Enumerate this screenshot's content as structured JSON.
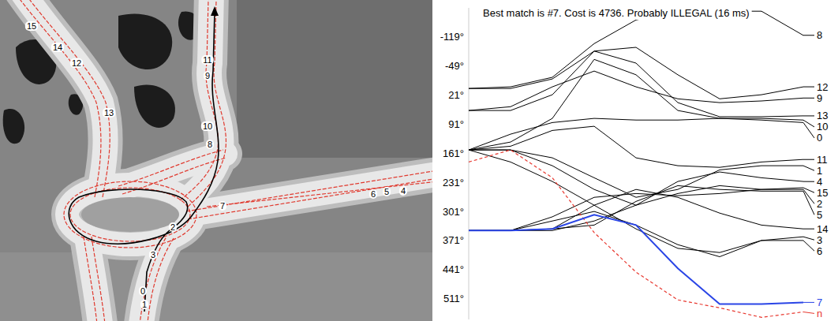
{
  "map": {
    "labels": [
      "0",
      "1",
      "2",
      "3",
      "4",
      "5",
      "6",
      "7",
      "8",
      "9",
      "10",
      "11",
      "12",
      "13",
      "14",
      "15"
    ]
  },
  "chart_data": {
    "type": "line",
    "title": "Best match is #7. Cost is 4736. Probably ILLEGAL (16 ms)",
    "x": [
      0,
      1,
      2,
      3,
      4,
      5,
      6,
      7,
      8
    ],
    "xlim": [
      0,
      8
    ],
    "ylim": [
      560,
      -190
    ],
    "yticks": [
      {
        "value": -119,
        "label": "-119°"
      },
      {
        "value": -49,
        "label": "-49°"
      },
      {
        "value": 21,
        "label": "21°"
      },
      {
        "value": 91,
        "label": "91°"
      },
      {
        "value": 161,
        "label": "161°"
      },
      {
        "value": 231,
        "label": "231°"
      },
      {
        "value": 301,
        "label": "301°"
      },
      {
        "value": 371,
        "label": "371°"
      },
      {
        "value": 441,
        "label": "441°"
      },
      {
        "value": 511,
        "label": "511°"
      }
    ],
    "tick_labels": "y",
    "grid": false,
    "series": [
      {
        "name": "0",
        "color": "#000000",
        "values": [
          152,
          114,
          86,
          76,
          80,
          80,
          76,
          80,
          86
        ]
      },
      {
        "name": "1",
        "color": "#000000",
        "values": [
          152,
          152,
          171,
          219,
          266,
          247,
          200,
          190,
          190
        ]
      },
      {
        "name": "2",
        "color": "#000000",
        "values": [
          346,
          346,
          346,
          323,
          285,
          257,
          238,
          247,
          247
        ]
      },
      {
        "name": "3",
        "color": "#000000",
        "values": [
          152,
          181,
          228,
          285,
          342,
          389,
          399,
          370,
          361
        ]
      },
      {
        "name": "4",
        "color": "#000000",
        "values": [
          152,
          152,
          190,
          247,
          285,
          228,
          205,
          219,
          228
        ]
      },
      {
        "name": "5",
        "color": "#000000",
        "values": [
          346,
          346,
          342,
          333,
          276,
          238,
          247,
          251,
          251
        ]
      },
      {
        "name": "6",
        "color": "#000000",
        "values": [
          346,
          346,
          323,
          300,
          333,
          380,
          409,
          370,
          370
        ]
      },
      {
        "name": "8",
        "color": "#000000",
        "values": [
          4,
          0,
          -23,
          -104,
          -161,
          -182,
          -182,
          -182,
          -124
        ]
      },
      {
        "name": "9",
        "color": "#000000",
        "values": [
          57,
          48,
          0,
          -38,
          0,
          29,
          38,
          34,
          27
        ]
      },
      {
        "name": "10",
        "color": "#000000",
        "values": [
          152,
          133,
          76,
          -66,
          -29,
          57,
          76,
          76,
          80
        ]
      },
      {
        "name": "11",
        "color": "#000000",
        "values": [
          152,
          143,
          105,
          95,
          171,
          190,
          194,
          181,
          175
        ]
      },
      {
        "name": "12",
        "color": "#000000",
        "values": [
          4,
          4,
          -19,
          -86,
          -95,
          -29,
          29,
          19,
          0
        ]
      },
      {
        "name": "13",
        "color": "#000000",
        "values": [
          57,
          57,
          19,
          -86,
          -57,
          38,
          72,
          72,
          70
        ]
      },
      {
        "name": "14",
        "color": "#000000",
        "values": [
          346,
          346,
          342,
          285,
          247,
          266,
          304,
          333,
          342
        ]
      },
      {
        "name": "15",
        "color": "#000000",
        "values": [
          346,
          346,
          313,
          266,
          257,
          262,
          257,
          247,
          243
        ]
      },
      {
        "name": "n",
        "color": "#e8382f",
        "line_style": "dashed",
        "values": [
          181,
          152,
          219,
          351,
          446,
          513,
          532,
          555,
          542
        ]
      },
      {
        "name": "7",
        "color": "#2a45e6",
        "line_style": "solid",
        "values": [
          346,
          346,
          342,
          308,
          333,
          437,
          523,
          523,
          519
        ]
      }
    ]
  }
}
